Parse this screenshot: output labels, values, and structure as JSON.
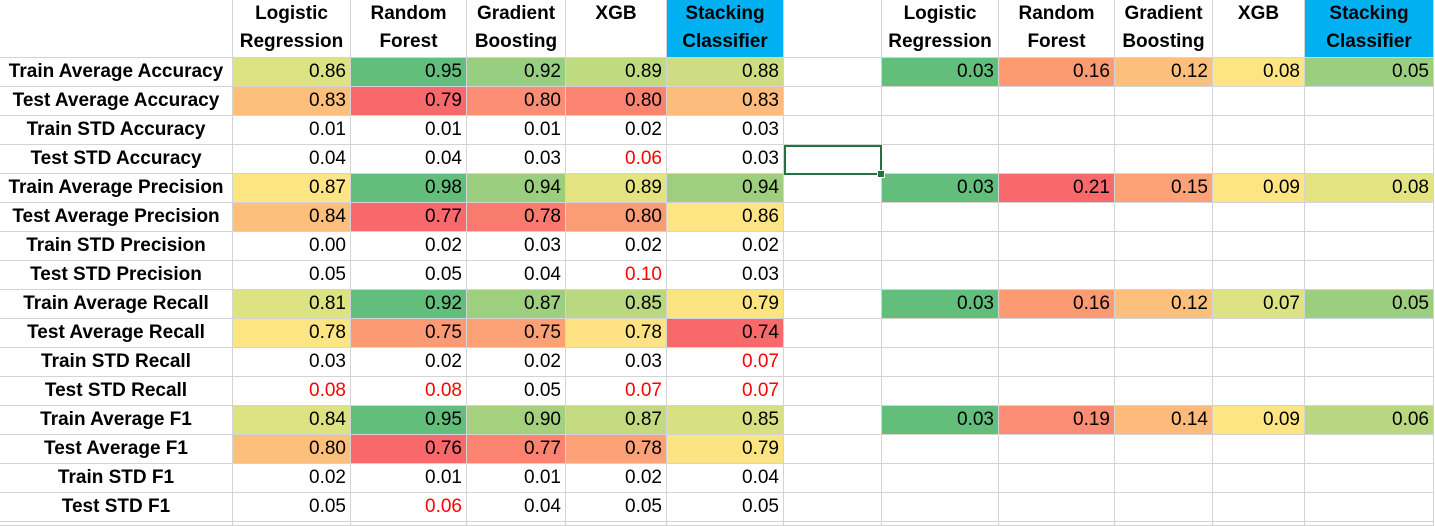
{
  "headers": {
    "left": [
      {
        "line1": "Logistic",
        "line2": "Regression",
        "highlight": false
      },
      {
        "line1": "Random",
        "line2": "Forest",
        "highlight": false
      },
      {
        "line1": "Gradient",
        "line2": "Boosting",
        "highlight": false
      },
      {
        "line1": "XGB",
        "line2": "",
        "highlight": false
      },
      {
        "line1": "Stacking",
        "line2": "Classifier",
        "highlight": true
      }
    ],
    "right": [
      {
        "line1": "Logistic",
        "line2": "Regression",
        "highlight": false
      },
      {
        "line1": "Random",
        "line2": "Forest",
        "highlight": false
      },
      {
        "line1": "Gradient",
        "line2": "Boosting",
        "highlight": false
      },
      {
        "line1": "XGB",
        "line2": "",
        "highlight": false
      },
      {
        "line1": "Stacking",
        "line2": "Classifier",
        "highlight": true
      }
    ],
    "highlight_color": "#00b0f0"
  },
  "rows": [
    {
      "label": "Train Average Accuracy",
      "values": [
        {
          "v": "0.86",
          "bg": "#dde282"
        },
        {
          "v": "0.95",
          "bg": "#63be7b"
        },
        {
          "v": "0.92",
          "bg": "#98ce7f"
        },
        {
          "v": "0.89",
          "bg": "#c0da81"
        },
        {
          "v": "0.88",
          "bg": "#cfdd82"
        }
      ],
      "diffs": [
        {
          "v": "0.03",
          "bg": "#63be7b"
        },
        {
          "v": "0.16",
          "bg": "#fc9a71"
        },
        {
          "v": "0.12",
          "bg": "#fdc07c"
        },
        {
          "v": "0.08",
          "bg": "#fee583"
        },
        {
          "v": "0.05",
          "bg": "#9bcf7f"
        }
      ]
    },
    {
      "label": "Test Average Accuracy",
      "values": [
        {
          "v": "0.83",
          "bg": "#fdc07c"
        },
        {
          "v": "0.79",
          "bg": "#f8696b"
        },
        {
          "v": "0.80",
          "bg": "#fa8d73"
        },
        {
          "v": "0.80",
          "bg": "#fa8470"
        },
        {
          "v": "0.83",
          "bg": "#fdbc7b"
        }
      ],
      "diffs": null
    },
    {
      "label": "Train STD Accuracy",
      "values": [
        {
          "v": "0.01"
        },
        {
          "v": "0.01"
        },
        {
          "v": "0.01"
        },
        {
          "v": "0.02"
        },
        {
          "v": "0.03"
        }
      ],
      "diffs": null
    },
    {
      "label": "Test STD Accuracy",
      "values": [
        {
          "v": "0.04"
        },
        {
          "v": "0.04"
        },
        {
          "v": "0.03"
        },
        {
          "v": "0.06",
          "red": true
        },
        {
          "v": "0.03"
        }
      ],
      "diffs": null
    },
    {
      "label": "Train Average Precision",
      "values": [
        {
          "v": "0.87",
          "bg": "#fee583"
        },
        {
          "v": "0.98",
          "bg": "#63be7b"
        },
        {
          "v": "0.94",
          "bg": "#9bcf7f"
        },
        {
          "v": "0.89",
          "bg": "#e3e382"
        },
        {
          "v": "0.94",
          "bg": "#9dcf7f"
        }
      ],
      "diffs": [
        {
          "v": "0.03",
          "bg": "#63be7b"
        },
        {
          "v": "0.21",
          "bg": "#f8696b"
        },
        {
          "v": "0.15",
          "bg": "#fca276"
        },
        {
          "v": "0.09",
          "bg": "#fee583"
        },
        {
          "v": "0.08",
          "bg": "#e3e382"
        }
      ]
    },
    {
      "label": "Test Average Precision",
      "values": [
        {
          "v": "0.84",
          "bg": "#fdc07c"
        },
        {
          "v": "0.77",
          "bg": "#f8696b"
        },
        {
          "v": "0.78",
          "bg": "#f97b6e"
        },
        {
          "v": "0.80",
          "bg": "#fb9c74"
        },
        {
          "v": "0.86",
          "bg": "#fee583"
        }
      ],
      "diffs": null
    },
    {
      "label": "Train STD Precision",
      "values": [
        {
          "v": "0.00"
        },
        {
          "v": "0.02"
        },
        {
          "v": "0.03"
        },
        {
          "v": "0.02"
        },
        {
          "v": "0.02"
        }
      ],
      "diffs": null
    },
    {
      "label": "Test STD Precision",
      "values": [
        {
          "v": "0.05"
        },
        {
          "v": "0.05"
        },
        {
          "v": "0.04"
        },
        {
          "v": "0.10",
          "red": true
        },
        {
          "v": "0.03"
        }
      ],
      "diffs": null
    },
    {
      "label": "Train Average Recall",
      "values": [
        {
          "v": "0.81",
          "bg": "#dde282"
        },
        {
          "v": "0.92",
          "bg": "#63be7b"
        },
        {
          "v": "0.87",
          "bg": "#9dcf7f"
        },
        {
          "v": "0.85",
          "bg": "#b9d881"
        },
        {
          "v": "0.79",
          "bg": "#fde482"
        }
      ],
      "diffs": [
        {
          "v": "0.03",
          "bg": "#63be7b"
        },
        {
          "v": "0.16",
          "bg": "#fc9a71"
        },
        {
          "v": "0.12",
          "bg": "#fdc07c"
        },
        {
          "v": "0.07",
          "bg": "#dde282"
        },
        {
          "v": "0.05",
          "bg": "#9bcf7f"
        }
      ]
    },
    {
      "label": "Test Average Recall",
      "values": [
        {
          "v": "0.78",
          "bg": "#fee583"
        },
        {
          "v": "0.75",
          "bg": "#fb9a74"
        },
        {
          "v": "0.75",
          "bg": "#fca075"
        },
        {
          "v": "0.78",
          "bg": "#fee283"
        },
        {
          "v": "0.74",
          "bg": "#f8696b"
        }
      ],
      "diffs": null
    },
    {
      "label": "Train STD Recall",
      "values": [
        {
          "v": "0.03"
        },
        {
          "v": "0.02"
        },
        {
          "v": "0.02"
        },
        {
          "v": "0.03"
        },
        {
          "v": "0.07",
          "red": true
        }
      ],
      "diffs": null
    },
    {
      "label": "Test STD Recall",
      "values": [
        {
          "v": "0.08",
          "red": true
        },
        {
          "v": "0.08",
          "red": true
        },
        {
          "v": "0.05"
        },
        {
          "v": "0.07",
          "red": true
        },
        {
          "v": "0.07",
          "red": true
        }
      ],
      "diffs": null
    },
    {
      "label": "Train Average F1",
      "values": [
        {
          "v": "0.84",
          "bg": "#dde282"
        },
        {
          "v": "0.95",
          "bg": "#63be7b"
        },
        {
          "v": "0.90",
          "bg": "#a5d17f"
        },
        {
          "v": "0.87",
          "bg": "#c4da81"
        },
        {
          "v": "0.85",
          "bg": "#d8e082"
        }
      ],
      "diffs": [
        {
          "v": "0.03",
          "bg": "#63be7b"
        },
        {
          "v": "0.19",
          "bg": "#fa8d73"
        },
        {
          "v": "0.14",
          "bg": "#fdba7a"
        },
        {
          "v": "0.09",
          "bg": "#fee583"
        },
        {
          "v": "0.06",
          "bg": "#b8d780"
        }
      ]
    },
    {
      "label": "Test Average F1",
      "values": [
        {
          "v": "0.80",
          "bg": "#fdc07c"
        },
        {
          "v": "0.76",
          "bg": "#f8696b"
        },
        {
          "v": "0.77",
          "bg": "#fa8470"
        },
        {
          "v": "0.78",
          "bg": "#fca276"
        },
        {
          "v": "0.79",
          "bg": "#fde482"
        }
      ],
      "diffs": null
    },
    {
      "label": "Train STD F1",
      "values": [
        {
          "v": "0.02"
        },
        {
          "v": "0.01"
        },
        {
          "v": "0.01"
        },
        {
          "v": "0.02"
        },
        {
          "v": "0.04"
        }
      ],
      "diffs": null
    },
    {
      "label": "Test STD F1",
      "values": [
        {
          "v": "0.05"
        },
        {
          "v": "0.06",
          "red": true
        },
        {
          "v": "0.04"
        },
        {
          "v": "0.05"
        },
        {
          "v": "0.05"
        }
      ],
      "diffs": null
    }
  ],
  "font_red": "#ff0000",
  "selection_border": "#217346"
}
